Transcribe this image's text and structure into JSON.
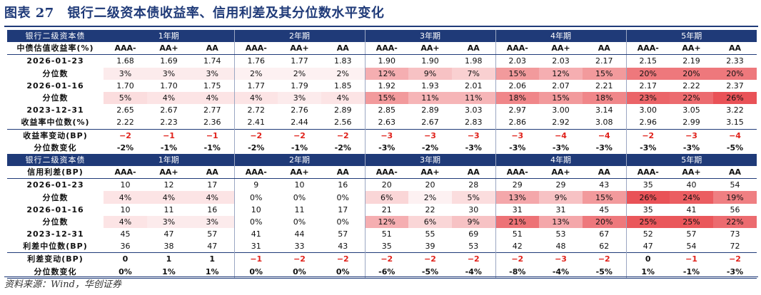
{
  "title": "图表 27　银行二级资本债收益率、信用利差及其分位数水平变化",
  "footer": "资料来源：Wind，华创证券",
  "colors": {
    "navy": "#1f3a78",
    "negative": "#e0221b",
    "heat_base": "#e8494e"
  },
  "groups": [
    "1年期",
    "2年期",
    "3年期",
    "4年期",
    "5年期"
  ],
  "ratings": [
    "AAA-",
    "AA+",
    "AA"
  ],
  "yield_table": {
    "section_label": "银行二级资本债",
    "rows": [
      {
        "label": "2026-01-23",
        "type": "val",
        "cells": [
          "1.68",
          "1.69",
          "1.74",
          "1.76",
          "1.77",
          "1.83",
          "1.90",
          "1.90",
          "1.98",
          "2.03",
          "2.03",
          "2.17",
          "2.15",
          "2.19",
          "2.33"
        ]
      },
      {
        "label": "分位数",
        "type": "pct",
        "cells": [
          "3%",
          "3%",
          "3%",
          "2%",
          "2%",
          "2%",
          "12%",
          "9%",
          "7%",
          "15%",
          "12%",
          "15%",
          "20%",
          "20%",
          "20%"
        ]
      },
      {
        "label": "2026-01-16",
        "type": "val",
        "cells": [
          "1.70",
          "1.70",
          "1.75",
          "1.77",
          "1.79",
          "1.85",
          "1.92",
          "1.93",
          "2.01",
          "2.06",
          "2.07",
          "2.21",
          "2.17",
          "2.22",
          "2.37"
        ]
      },
      {
        "label": "分位数",
        "type": "pct",
        "cells": [
          "5%",
          "4%",
          "4%",
          "4%",
          "3%",
          "4%",
          "15%",
          "11%",
          "11%",
          "18%",
          "15%",
          "18%",
          "23%",
          "22%",
          "26%"
        ]
      },
      {
        "label": "2023-12-31",
        "type": "val",
        "cells": [
          "2.65",
          "2.67",
          "2.77",
          "2.72",
          "2.76",
          "2.89",
          "2.85",
          "2.89",
          "3.03",
          "2.97",
          "3.00",
          "3.14",
          "3.00",
          "3.05",
          "3.22"
        ]
      },
      {
        "label": "收益率中位数(%)",
        "type": "val",
        "cells": [
          "2.22",
          "2.23",
          "2.36",
          "2.41",
          "2.44",
          "2.56",
          "2.63",
          "2.67",
          "2.83",
          "2.86",
          "2.92",
          "3.08",
          "2.96",
          "2.99",
          "3.15"
        ]
      },
      {
        "label": "收益率变动(BP)",
        "type": "chg",
        "cells": [
          "−2",
          "−1",
          "−1",
          "−2",
          "−2",
          "−2",
          "−3",
          "−3",
          "−3",
          "−3",
          "−4",
          "−4",
          "−2",
          "−3",
          "−4"
        ]
      },
      {
        "label": "分位数变化",
        "type": "plain",
        "cells": [
          "-2%",
          "-1%",
          "-1%",
          "-2%",
          "-1%",
          "-2%",
          "-3%",
          "-2%",
          "-3%",
          "-3%",
          "-3%",
          "-3%",
          "-3%",
          "-3%",
          "-5%"
        ]
      }
    ],
    "sub_label": "中债估值收益率(%)"
  },
  "spread_table": {
    "section_label": "银行二级资本债",
    "sub_label": "信用利差(BP)",
    "rows": [
      {
        "label": "2026-01-23",
        "type": "val",
        "cells": [
          "10",
          "12",
          "17",
          "9",
          "10",
          "16",
          "20",
          "20",
          "28",
          "29",
          "29",
          "43",
          "35",
          "40",
          "54"
        ]
      },
      {
        "label": "分位数",
        "type": "pct",
        "cells": [
          "4%",
          "4%",
          "4%",
          "0%",
          "0%",
          "0%",
          "6%",
          "2%",
          "5%",
          "13%",
          "9%",
          "15%",
          "26%",
          "24%",
          "19%"
        ]
      },
      {
        "label": "2026-01-16",
        "type": "val",
        "cells": [
          "10",
          "11",
          "16",
          "10",
          "11",
          "17",
          "21",
          "22",
          "30",
          "31",
          "31",
          "45",
          "35",
          "41",
          "56"
        ]
      },
      {
        "label": "分位数",
        "type": "pct",
        "cells": [
          "4%",
          "3%",
          "3%",
          "0%",
          "0%",
          "0%",
          "12%",
          "6%",
          "9%",
          "21%",
          "13%",
          "20%",
          "25%",
          "25%",
          "22%"
        ]
      },
      {
        "label": "2023-12-31",
        "type": "val",
        "cells": [
          "45",
          "47",
          "57",
          "41",
          "44",
          "57",
          "51",
          "55",
          "69",
          "51",
          "53",
          "67",
          "52",
          "57",
          "73"
        ]
      },
      {
        "label": "利差中位数(BP)",
        "type": "val",
        "cells": [
          "36",
          "38",
          "47",
          "31",
          "33",
          "43",
          "35",
          "39",
          "53",
          "42",
          "48",
          "62",
          "47",
          "54",
          "72"
        ]
      },
      {
        "label": "利差变动(BP)",
        "type": "chg",
        "cells": [
          "0",
          "1",
          "1",
          "−1",
          "−2",
          "−2",
          "−2",
          "−2",
          "−2",
          "−2",
          "−3",
          "−2",
          "0",
          "−1",
          "−2"
        ]
      },
      {
        "label": "分位数变化",
        "type": "plain",
        "cells": [
          "0%",
          "1%",
          "1%",
          "0%",
          "0%",
          "0%",
          "-6%",
          "-5%",
          "-4%",
          "-8%",
          "-4%",
          "-5%",
          "1%",
          "-1%",
          "-3%"
        ]
      }
    ]
  }
}
